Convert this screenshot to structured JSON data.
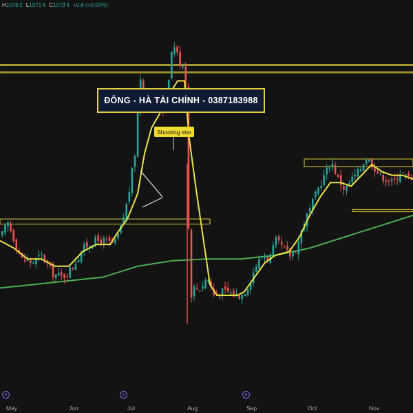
{
  "legend": {
    "h_key": "H",
    "h_val": "1076'2",
    "l_key": "L",
    "l_val": "1071'4",
    "c_key": "C",
    "c_val": "1073'4",
    "change": "+0,6 (+0,07%)"
  },
  "banner_text": "ĐÔNG - HÀ TÀI CHÍNH - 0387183988",
  "callout_text": "Shooting star",
  "event_marker_icon": "double-chevron-right-icon",
  "colors": {
    "background": "#131313",
    "up": "#26a69a",
    "down": "#ef5350",
    "ma_short": "#f0e442",
    "ma_long": "#4caf50",
    "zones": "#e6cf3c",
    "banner_bg": "#0f1a33"
  },
  "chart_data": {
    "type": "candlestick",
    "x_ticks": [
      "May",
      "Jun",
      "Jul",
      "Aug",
      "Sep",
      "Oct",
      "Nov"
    ],
    "y_range": [
      0,
      100
    ],
    "grid": false,
    "close_path": [
      [
        0,
        41
      ],
      [
        10,
        45
      ],
      [
        20,
        40
      ],
      [
        30,
        35
      ],
      [
        45,
        34
      ],
      [
        60,
        36
      ],
      [
        75,
        31
      ],
      [
        90,
        30
      ],
      [
        105,
        33
      ],
      [
        120,
        38
      ],
      [
        135,
        40
      ],
      [
        150,
        40
      ],
      [
        165,
        39
      ],
      [
        175,
        44
      ],
      [
        185,
        52
      ],
      [
        193,
        62
      ],
      [
        198,
        68
      ],
      [
        200,
        86
      ],
      [
        205,
        84
      ],
      [
        212,
        79
      ],
      [
        220,
        77
      ],
      [
        230,
        77
      ],
      [
        238,
        76
      ],
      [
        245,
        87
      ],
      [
        250,
        95
      ],
      [
        255,
        92
      ],
      [
        262,
        88
      ],
      [
        266,
        89
      ],
      [
        270,
        80
      ],
      [
        274,
        24
      ],
      [
        280,
        27
      ],
      [
        290,
        27
      ],
      [
        300,
        30
      ],
      [
        310,
        25
      ],
      [
        320,
        26
      ],
      [
        330,
        26
      ],
      [
        340,
        25
      ],
      [
        350,
        25
      ],
      [
        360,
        28
      ],
      [
        370,
        33
      ],
      [
        380,
        36
      ],
      [
        390,
        35
      ],
      [
        400,
        40
      ],
      [
        410,
        38
      ],
      [
        420,
        36
      ],
      [
        430,
        38
      ],
      [
        440,
        45
      ],
      [
        450,
        49
      ],
      [
        460,
        54
      ],
      [
        470,
        58
      ],
      [
        480,
        62
      ],
      [
        490,
        57
      ],
      [
        500,
        54
      ],
      [
        510,
        57
      ],
      [
        520,
        59
      ],
      [
        530,
        63
      ],
      [
        540,
        61
      ],
      [
        550,
        58
      ],
      [
        560,
        57
      ],
      [
        570,
        56
      ],
      [
        580,
        59
      ],
      [
        600,
        56
      ]
    ],
    "ma_short_path": [
      [
        0,
        40
      ],
      [
        20,
        38
      ],
      [
        40,
        35
      ],
      [
        60,
        35
      ],
      [
        80,
        33
      ],
      [
        100,
        33
      ],
      [
        120,
        37
      ],
      [
        140,
        39
      ],
      [
        160,
        39
      ],
      [
        170,
        42
      ],
      [
        185,
        46
      ],
      [
        200,
        53
      ],
      [
        210,
        64
      ],
      [
        220,
        71
      ],
      [
        232,
        75
      ],
      [
        245,
        80
      ],
      [
        258,
        84
      ],
      [
        268,
        84
      ],
      [
        275,
        68
      ],
      [
        285,
        54
      ],
      [
        295,
        41
      ],
      [
        305,
        28
      ],
      [
        315,
        25
      ],
      [
        330,
        25
      ],
      [
        345,
        25
      ],
      [
        355,
        26
      ],
      [
        370,
        30
      ],
      [
        385,
        34
      ],
      [
        400,
        36
      ],
      [
        420,
        37
      ],
      [
        435,
        41
      ],
      [
        450,
        47
      ],
      [
        465,
        52
      ],
      [
        480,
        56
      ],
      [
        495,
        56
      ],
      [
        510,
        55
      ],
      [
        525,
        58
      ],
      [
        540,
        61
      ],
      [
        555,
        59
      ],
      [
        570,
        58
      ],
      [
        585,
        58
      ],
      [
        600,
        57
      ]
    ],
    "ma_long_path": [
      [
        0,
        27
      ],
      [
        50,
        28
      ],
      [
        100,
        29
      ],
      [
        150,
        30
      ],
      [
        200,
        33
      ],
      [
        250,
        34.5
      ],
      [
        300,
        35
      ],
      [
        350,
        35
      ],
      [
        400,
        36
      ],
      [
        450,
        38
      ],
      [
        500,
        41
      ],
      [
        550,
        44
      ],
      [
        600,
        47
      ]
    ],
    "zones": [
      {
        "x": [
          0,
          600
        ],
        "y": [
          88.2,
          88.5
        ]
      },
      {
        "x": [
          0,
          600
        ],
        "y": [
          86.2,
          86.5
        ]
      },
      {
        "x": [
          0,
          305
        ],
        "y": [
          44.6,
          46.0
        ]
      },
      {
        "x": [
          442,
          600
        ],
        "y": [
          60.4,
          62.5
        ]
      },
      {
        "x": [
          512,
          600
        ],
        "y": [
          48.0,
          48.6
        ]
      }
    ],
    "annotation": {
      "label": "Shooting star",
      "x": 252
    }
  }
}
